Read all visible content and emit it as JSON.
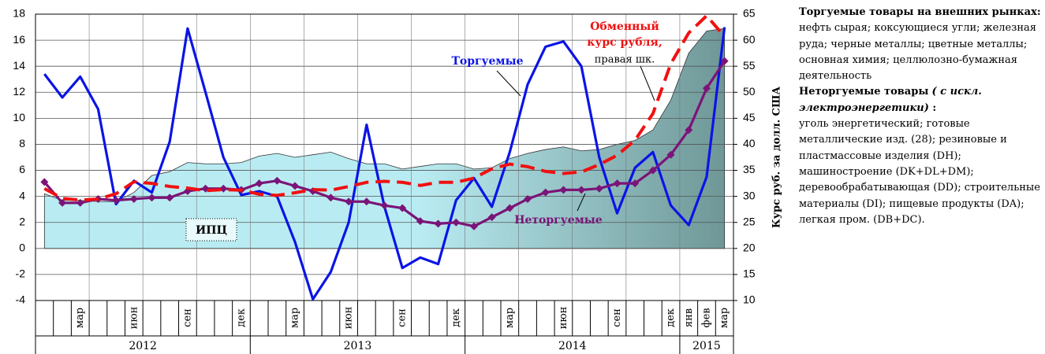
{
  "chart_data": {
    "type": "line",
    "categories": [
      null,
      null,
      "мар",
      null,
      null,
      "июн",
      null,
      null,
      "сен",
      null,
      null,
      "дек",
      null,
      null,
      "мар",
      null,
      null,
      "июн",
      null,
      null,
      "сен",
      null,
      null,
      "дек",
      null,
      null,
      "мар",
      null,
      null,
      "июн",
      null,
      null,
      "сен",
      null,
      null,
      "дек",
      "янв",
      "фев",
      "мар"
    ],
    "year_labels": [
      "2012",
      "2013",
      "2014",
      "2015"
    ],
    "ylim": [
      -4,
      18
    ],
    "yticks": [
      -4,
      -2,
      0,
      2,
      4,
      6,
      8,
      10,
      12,
      14,
      16,
      18
    ],
    "y2lim": [
      10,
      65
    ],
    "y2ticks": [
      10,
      15,
      20,
      25,
      30,
      35,
      40,
      45,
      50,
      55,
      60,
      65
    ],
    "y2label": "Курс руб. за долл. США",
    "grid": true,
    "series": [
      {
        "name": "ИПЦ",
        "kind": "area",
        "color": "#b9ecf2",
        "color2": "#6f9797",
        "values": [
          4.2,
          3.7,
          3.7,
          3.6,
          3.6,
          4.3,
          5.6,
          5.9,
          6.6,
          6.5,
          6.5,
          6.6,
          7.1,
          7.3,
          7.0,
          7.2,
          7.4,
          6.9,
          6.5,
          6.5,
          6.1,
          6.3,
          6.5,
          6.5,
          6.1,
          6.2,
          6.9,
          7.3,
          7.6,
          7.8,
          7.5,
          7.6,
          8.0,
          8.3,
          9.1,
          11.4,
          15.0,
          16.7,
          16.9
        ]
      },
      {
        "name": "Торгуемые",
        "kind": "line",
        "color": "#0a14e6",
        "values": [
          13.4,
          11.6,
          13.2,
          10.7,
          3.4,
          5.2,
          4.3,
          8.2,
          16.9,
          12.0,
          7.0,
          4.1,
          4.4,
          4.0,
          0.5,
          -3.9,
          -1.8,
          2.0,
          9.5,
          3.2,
          -1.5,
          -0.7,
          -1.2,
          3.7,
          5.4,
          3.2,
          7.4,
          12.6,
          15.5,
          15.9,
          14.0,
          7.0,
          2.7,
          6.2,
          7.4,
          3.3,
          1.8,
          5.5,
          17.0
        ]
      },
      {
        "name": "Неторгуемые",
        "kind": "line",
        "markers": true,
        "color": "#7b1478",
        "values": [
          5.1,
          3.5,
          3.5,
          3.8,
          3.7,
          3.8,
          3.9,
          3.9,
          4.4,
          4.6,
          4.6,
          4.5,
          5.0,
          5.2,
          4.8,
          4.4,
          3.9,
          3.6,
          3.6,
          3.3,
          3.1,
          2.1,
          1.9,
          2.0,
          1.7,
          2.4,
          3.1,
          3.8,
          4.3,
          4.5,
          4.5,
          4.6,
          5.0,
          5.0,
          6.0,
          7.2,
          9.1,
          12.3,
          14.4
        ]
      },
      {
        "name": "Обменный курс рубля,",
        "note": "правая шк.",
        "kind": "line",
        "dashed": true,
        "axis": "y2",
        "color": "#f01010",
        "values": [
          31.5,
          29.6,
          29.3,
          29.5,
          30.5,
          32.8,
          32.5,
          31.9,
          31.6,
          31.1,
          31.3,
          31.2,
          30.4,
          30.2,
          30.7,
          31.3,
          31.2,
          31.9,
          32.7,
          32.9,
          32.7,
          32.1,
          32.7,
          32.7,
          33.5,
          35.3,
          36.2,
          35.7,
          34.8,
          34.4,
          34.7,
          36.1,
          37.9,
          40.8,
          45.9,
          55.5,
          61.4,
          64.7,
          60.7
        ]
      }
    ]
  },
  "side_note": {
    "traded_heading": "Торгуемые товары на внешних рынках:",
    "traded_body": "нефть сырая; коксующиеся угли; железная руда; черные металлы; цветные металлы; основная химия; целлюлозно-бумажная деятельность",
    "nontraded_heading": "Неторгуемые товары",
    "nontraded_heading_em": "( с искл. электроэнергетики)",
    "nontraded_heading_tail": " :",
    "nontraded_body": "уголь энергетический; готовые металлические изд. (28); резиновые и пластмассовые изделия (DH); машиностроение (DK+DL+DM); деревообрабатывающая (DD); строительные материалы (DI); пищевые продукты (DA); легкая пром. (DB+DC)."
  }
}
